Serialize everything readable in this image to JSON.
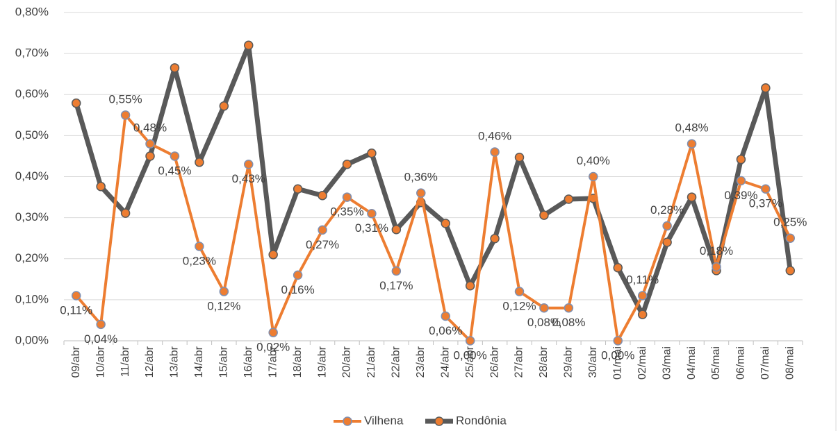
{
  "chart_data": {
    "type": "line",
    "categories": [
      "09/abr",
      "10/abr",
      "11/abr",
      "12/abr",
      "13/abr",
      "14/abr",
      "15/abr",
      "16/abr",
      "17/abr",
      "18/abr",
      "19/abr",
      "20/abr",
      "21/abr",
      "22/abr",
      "23/abr",
      "24/abr",
      "25/abr",
      "26/abr",
      "27/abr",
      "28/abr",
      "29/abr",
      "30/abr",
      "01/mai",
      "02/mai",
      "03/mai",
      "04/mai",
      "05/mai",
      "06/mai",
      "07/mai",
      "08/mai"
    ],
    "series": [
      {
        "name": "Vilhena",
        "color": "#ed7d31",
        "marker_fill": "#ed7d31",
        "marker_stroke": "#7f8fb0",
        "values": [
          0.11,
          0.04,
          0.55,
          0.48,
          0.45,
          0.23,
          0.12,
          0.43,
          0.02,
          0.16,
          0.27,
          0.35,
          0.31,
          0.17,
          0.36,
          0.06,
          0.0,
          0.46,
          0.12,
          0.08,
          0.08,
          0.4,
          0.0,
          0.11,
          0.28,
          0.48,
          0.18,
          0.39,
          0.37,
          0.25
        ],
        "value_labels": [
          "0,11%",
          "0,04%",
          "0,55%",
          "0,48%",
          "0,45%",
          "0,23%",
          "0,12%",
          "0,43%",
          "0,02%",
          "0,16%",
          "0,27%",
          "0,35%",
          "0,31%",
          "0,17%",
          "0,36%",
          "0,06%",
          "0,00%",
          "0,46%",
          "0,12%",
          "0,08%",
          "0,08%",
          "0,40%",
          "0,00%",
          "0,11%",
          "0,28%",
          "0,48%",
          "0,18%",
          "0,39%",
          "0,37%",
          "0,25%"
        ]
      },
      {
        "name": "Rondônia",
        "color": "#595959",
        "marker_fill": "#ed7d31",
        "marker_stroke": "#595959",
        "values": [
          0.579,
          0.376,
          0.311,
          0.45,
          0.665,
          0.435,
          0.572,
          0.72,
          0.21,
          0.37,
          0.354,
          0.43,
          0.457,
          0.271,
          0.337,
          0.286,
          0.134,
          0.249,
          0.447,
          0.306,
          0.345,
          0.347,
          0.178,
          0.064,
          0.24,
          0.35,
          0.171,
          0.442,
          0.616,
          0.171
        ]
      }
    ],
    "ylim": [
      0,
      0.8
    ],
    "yticks": [
      {
        "value": 0,
        "label": "0,00%"
      },
      {
        "value": 0.1,
        "label": "0,10%"
      },
      {
        "value": 0.2,
        "label": "0,20%"
      },
      {
        "value": 0.3,
        "label": "0,30%"
      },
      {
        "value": 0.4,
        "label": "0,40%"
      },
      {
        "value": 0.5,
        "label": "0,50%"
      },
      {
        "value": 0.6,
        "label": "0,60%"
      },
      {
        "value": 0.7,
        "label": "0,70%"
      },
      {
        "value": 0.8,
        "label": "0,80%"
      }
    ],
    "grid": true,
    "legend": "bottom"
  }
}
